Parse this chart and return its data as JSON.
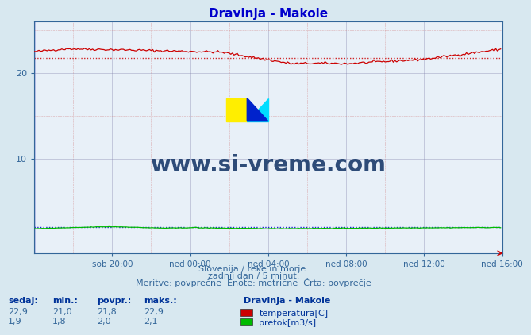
{
  "title": "Dravinja - Makole",
  "title_color": "#0000cc",
  "bg_color": "#d8e8f0",
  "plot_bg_color": "#e8f0f8",
  "xlabel_ticks": [
    "sob 20:00",
    "ned 00:00",
    "ned 04:00",
    "ned 08:00",
    "ned 12:00",
    "ned 16:00"
  ],
  "yticks": [
    10,
    20
  ],
  "ylim": [
    -1,
    26
  ],
  "xlim": [
    0,
    288
  ],
  "temp_color": "#cc0000",
  "flow_color": "#00bb00",
  "avg_temp_color": "#cc0000",
  "avg_flow_color": "#0000cc",
  "footer_line1": "Slovenija / reke in morje.",
  "footer_line2": "zadnji dan / 5 minut.",
  "footer_line3": "Meritve: povprečne  Enote: metrične  Črta: povprečje",
  "footer_color": "#336699",
  "watermark_text": "www.si-vreme.com",
  "watermark_color": "#1a3a6a",
  "legend_title": "Dravinja - Makole",
  "legend_entries": [
    "temperatura[C]",
    "pretok[m3/s]"
  ],
  "legend_colors": [
    "#cc0000",
    "#00bb00"
  ],
  "stats_headers": [
    "sedaj:",
    "min.:",
    "povpr.:",
    "maks.:"
  ],
  "stats_temp": [
    "22,9",
    "21,0",
    "21,8",
    "22,9"
  ],
  "stats_flow": [
    "1,9",
    "1,8",
    "2,0",
    "2,1"
  ],
  "avg_temp": 21.8,
  "avg_flow": 2.0,
  "temp_min": 21.0,
  "temp_max": 22.9,
  "flow_min": 1.8,
  "flow_max": 2.1,
  "flow_scale_min": 0.0,
  "flow_scale_max": 5.0
}
